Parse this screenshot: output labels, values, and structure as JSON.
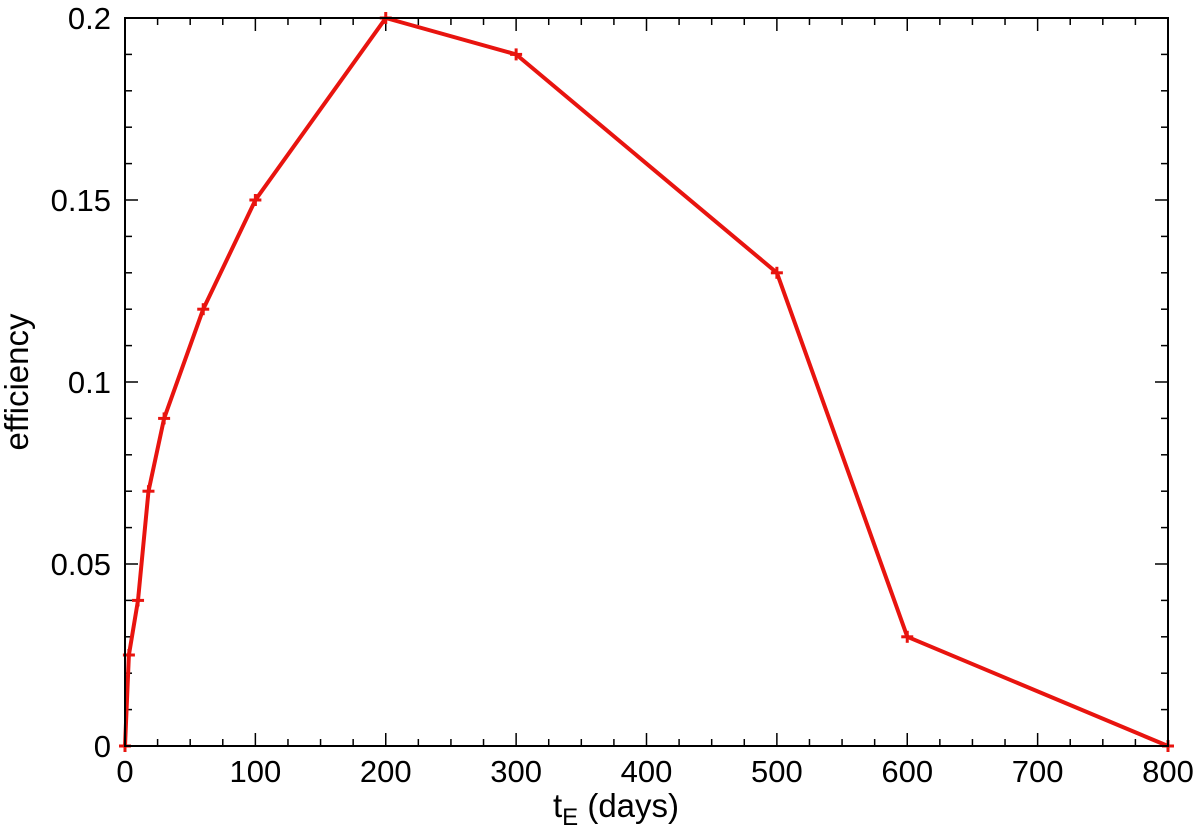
{
  "chart_data": {
    "type": "line",
    "xlabel_main": "t",
    "xlabel_sub": "E",
    "xlabel_suffix": " (days)",
    "ylabel": "efficiency",
    "xlim": [
      0,
      800
    ],
    "ylim": [
      0,
      0.2
    ],
    "x_ticks": [
      "0",
      "100",
      "200",
      "300",
      "400",
      "500",
      "600",
      "700",
      "800"
    ],
    "y_ticks": [
      "0",
      "0.05",
      "0.1",
      "0.15",
      "0.2"
    ],
    "grid": false,
    "series_color": "#e8140f",
    "series": [
      {
        "x": [
          0,
          3,
          10,
          18,
          30,
          60,
          100,
          200,
          300,
          500,
          600,
          800
        ],
        "y": [
          0,
          0.025,
          0.04,
          0.07,
          0.09,
          0.12,
          0.15,
          0.2,
          0.19,
          0.13,
          0.03,
          0
        ]
      }
    ]
  }
}
